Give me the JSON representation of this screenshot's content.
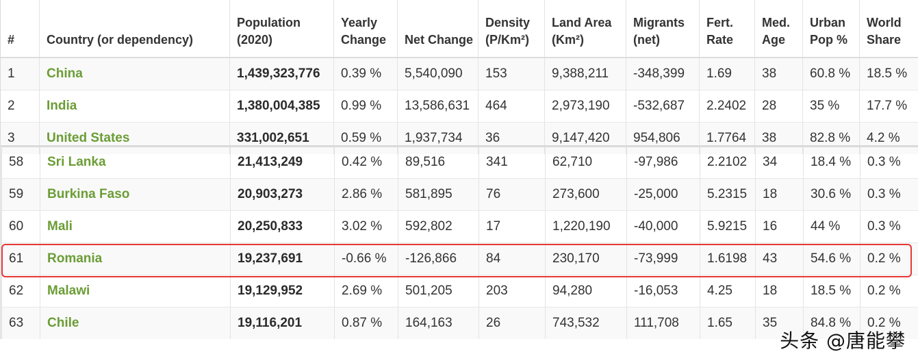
{
  "table": {
    "headers": [
      "#",
      "Country (or dependency)",
      "Population (2020)",
      "Yearly Change",
      "Net Change",
      "Density (P/Km²)",
      "Land Area (Km²)",
      "Migrants (net)",
      "Fert. Rate",
      "Med. Age",
      "Urban Pop %",
      "World Share"
    ],
    "top_rows": [
      [
        "1",
        "China",
        "1,439,323,776",
        "0.39 %",
        "5,540,090",
        "153",
        "9,388,211",
        "-348,399",
        "1.69",
        "38",
        "60.8 %",
        "18.5 %"
      ],
      [
        "2",
        "India",
        "1,380,004,385",
        "0.99 %",
        "13,586,631",
        "464",
        "2,973,190",
        "-532,687",
        "2.2402",
        "28",
        "35 %",
        "17.7 %"
      ],
      [
        "3",
        "United States",
        "331,002,651",
        "0.59 %",
        "1,937,734",
        "36",
        "9,147,420",
        "954,806",
        "1.7764",
        "38",
        "82.8 %",
        "4.2 %"
      ]
    ],
    "bottom_rows": [
      [
        "58",
        "Sri Lanka",
        "21,413,249",
        "0.42 %",
        "89,516",
        "341",
        "62,710",
        "-97,986",
        "2.2102",
        "34",
        "18.4 %",
        "0.3 %"
      ],
      [
        "59",
        "Burkina Faso",
        "20,903,273",
        "2.86 %",
        "581,895",
        "76",
        "273,600",
        "-25,000",
        "5.2315",
        "18",
        "30.6 %",
        "0.3 %"
      ],
      [
        "60",
        "Mali",
        "20,250,833",
        "3.02 %",
        "592,802",
        "17",
        "1,220,190",
        "-40,000",
        "5.9215",
        "16",
        "44 %",
        "0.3 %"
      ],
      [
        "61",
        "Romania",
        "19,237,691",
        "-0.66 %",
        "-126,866",
        "84",
        "230,170",
        "-73,999",
        "1.6198",
        "43",
        "54.6 %",
        "0.2 %"
      ],
      [
        "62",
        "Malawi",
        "19,129,952",
        "2.69 %",
        "501,205",
        "203",
        "94,280",
        "-16,053",
        "4.25",
        "18",
        "18.5 %",
        "0.2 %"
      ],
      [
        "63",
        "Chile",
        "19,116,201",
        "0.87 %",
        "164,163",
        "26",
        "743,532",
        "111,708",
        "1.65",
        "35",
        "84.8 %",
        "0.2 %"
      ]
    ]
  },
  "highlight": {
    "row_label": "Romania",
    "color": "#e53935"
  },
  "colors": {
    "country_link": "#6b9d35"
  },
  "watermark": "头条 @唐能攀"
}
